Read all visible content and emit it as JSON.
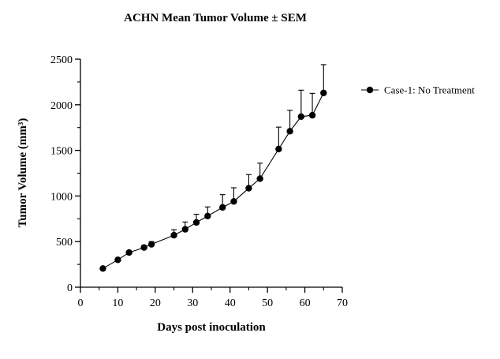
{
  "chart_data": {
    "type": "line",
    "title": "ACHN Mean Tumor Volume ± SEM",
    "xlabel": "Days post inoculation",
    "ylabel": "Tumor Volume (mm³)",
    "xlim": [
      0,
      70
    ],
    "ylim": [
      0,
      2500
    ],
    "xticks": [
      "0",
      "10",
      "20",
      "30",
      "40",
      "50",
      "60",
      "70"
    ],
    "yticks": [
      "0",
      "500",
      "1000",
      "1500",
      "2000",
      "2500"
    ],
    "grid": false,
    "legend_position": "right",
    "series": [
      {
        "name": "Case-1: No Treatment",
        "color": "#000000",
        "marker": "circle",
        "x": [
          6,
          10,
          13,
          17,
          19,
          25,
          28,
          31,
          34,
          38,
          41,
          45,
          48,
          53,
          56,
          59,
          62,
          65
        ],
        "y": [
          205,
          300,
          380,
          435,
          470,
          570,
          635,
          710,
          780,
          875,
          940,
          1085,
          1190,
          1515,
          1710,
          1870,
          1885,
          2130
        ],
        "sem": [
          0,
          0,
          0,
          20,
          30,
          60,
          80,
          90,
          100,
          140,
          150,
          150,
          170,
          240,
          230,
          290,
          240,
          310
        ]
      }
    ]
  }
}
